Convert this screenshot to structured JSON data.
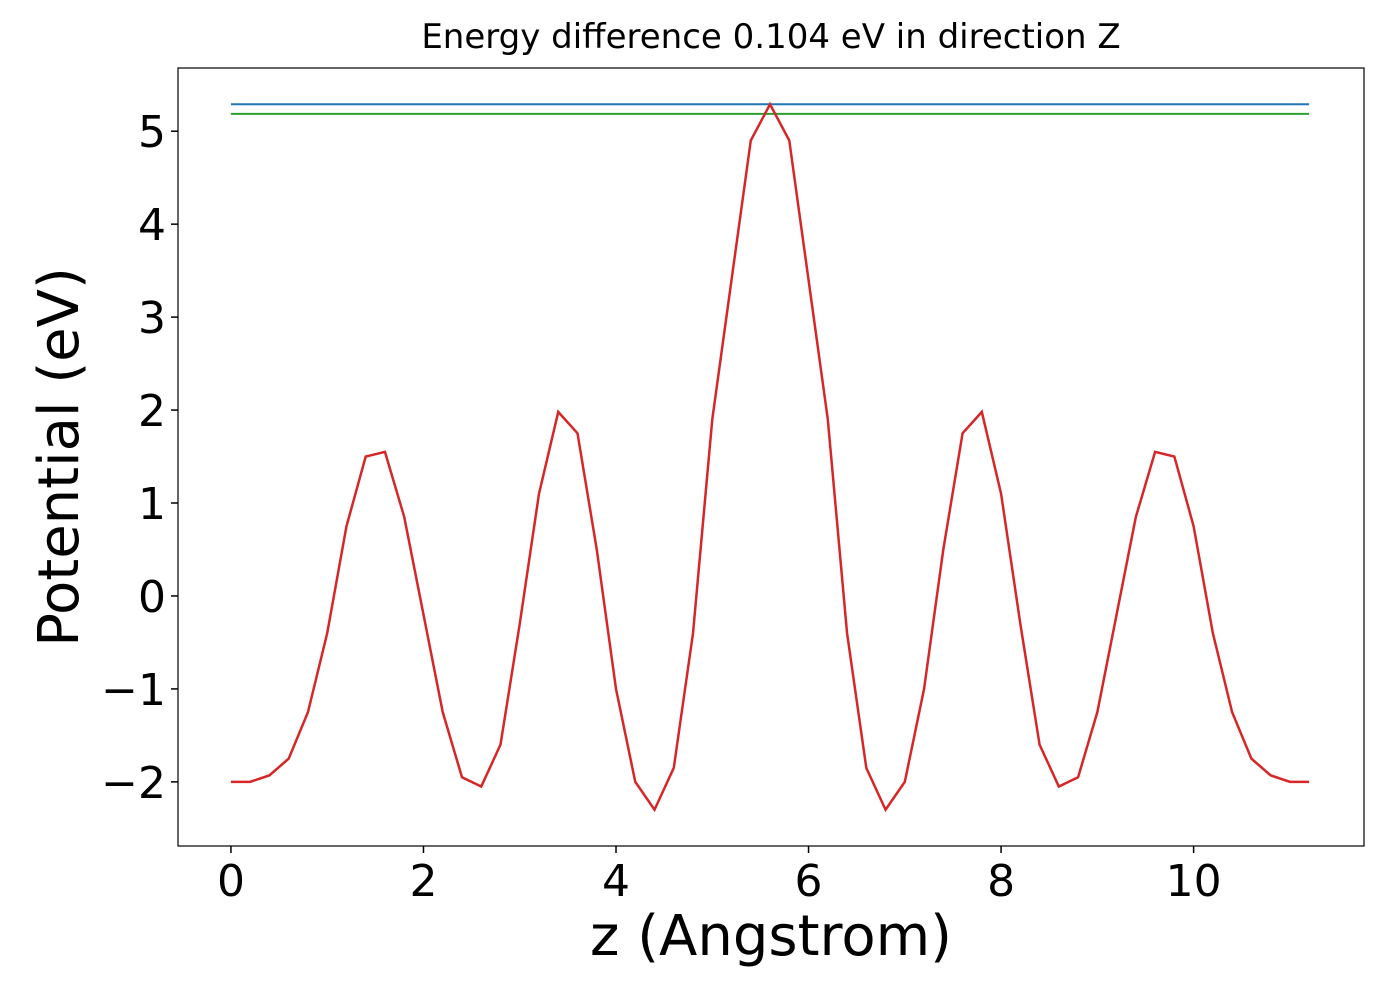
{
  "chart_data": {
    "type": "line",
    "title": "Energy difference 0.104 eV in direction Z",
    "xlabel": "z (Angstrom)",
    "ylabel": "Potential (eV)",
    "xlim": [
      -0.55,
      11.77
    ],
    "ylim": [
      -2.69,
      5.68
    ],
    "xticks": [
      0,
      2,
      4,
      6,
      8,
      10
    ],
    "yticks": [
      {
        "value": -2,
        "label": "−2"
      },
      {
        "value": -1,
        "label": "−1"
      },
      0,
      1,
      2,
      3,
      4,
      5
    ],
    "series": [
      {
        "color": "#1f77b4",
        "x": [
          0,
          11.2
        ],
        "values": [
          5.29,
          5.29
        ]
      },
      {
        "color": "#2ca02c",
        "x": [
          0,
          11.2
        ],
        "values": [
          5.186,
          5.186
        ]
      },
      {
        "color": "#d62728",
        "x": [
          0,
          0.2,
          0.4,
          0.6,
          0.8,
          1.0,
          1.2,
          1.4,
          1.6,
          1.8,
          2.0,
          2.2,
          2.4,
          2.6,
          2.8,
          3.0,
          3.2,
          3.4,
          3.6,
          3.8,
          4.0,
          4.2,
          4.4,
          4.6,
          4.8,
          5.0,
          5.2,
          5.4,
          5.6,
          5.8,
          6.0,
          6.2,
          6.4,
          6.6,
          6.8,
          7.0,
          7.2,
          7.4,
          7.6,
          7.8,
          8.0,
          8.2,
          8.4,
          8.6,
          8.8,
          9.0,
          9.2,
          9.4,
          9.6,
          9.8,
          10.0,
          10.2,
          10.4,
          10.6,
          10.8,
          11.0,
          11.2
        ],
        "values": [
          -2,
          -2,
          -1.93,
          -1.75,
          -1.25,
          -0.4,
          0.75,
          1.5,
          1.55,
          0.85,
          -0.2,
          -1.25,
          -1.95,
          -2.05,
          -1.6,
          -0.3,
          1.1,
          1.98,
          1.75,
          0.5,
          -1.0,
          -2.0,
          -2.3,
          -1.85,
          -0.4,
          1.9,
          3.4,
          4.9,
          5.29,
          4.9,
          3.4,
          1.9,
          -0.4,
          -1.85,
          -2.3,
          -2.0,
          -1.0,
          0.5,
          1.75,
          1.98,
          1.1,
          -0.3,
          -1.6,
          -2.05,
          -1.95,
          -1.25,
          -0.2,
          0.85,
          1.55,
          1.5,
          0.75,
          -0.4,
          -1.25,
          -1.75,
          -1.93,
          -2,
          -2
        ]
      }
    ]
  }
}
